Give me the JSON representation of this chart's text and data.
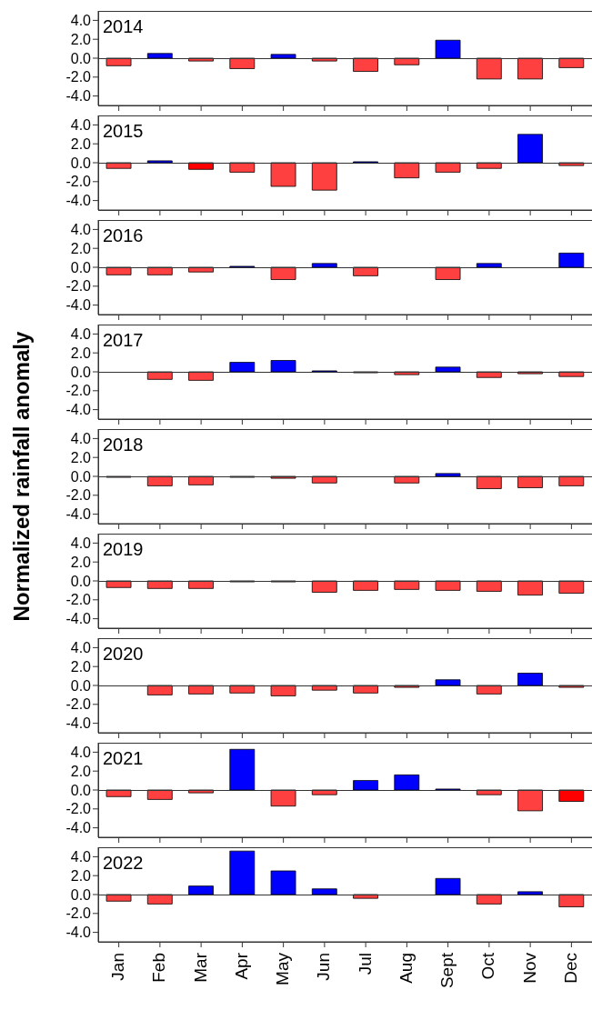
{
  "chart_data": [
    {
      "type": "bar",
      "title": "2014",
      "categories": [
        null,
        null,
        null,
        null,
        null,
        null,
        null,
        null,
        null,
        null,
        null,
        null
      ],
      "values": [
        -0.8,
        0.5,
        -0.3,
        -1.1,
        0.4,
        -0.3,
        -1.4,
        -0.7,
        1.9,
        -2.2,
        -2.2,
        -1.0
      ],
      "colors": [
        "#ff4040",
        "#0000ff",
        "#ff4040",
        "#ff4040",
        "#0000ff",
        "#ff4040",
        "#ff4040",
        "#ff4040",
        "#0000ff",
        "#ff4040",
        "#ff4040",
        "#ff4040"
      ],
      "ylim": [
        -5,
        5
      ],
      "yticks": [
        {
          "value": 4,
          "label": "4.0"
        },
        {
          "value": 2,
          "label": "2.0"
        },
        {
          "value": 0,
          "label": "0.0"
        },
        {
          "value": -2,
          "label": "-2.0"
        },
        {
          "value": -4,
          "label": "-4.0"
        }
      ],
      "tick_labels": "y"
    },
    {
      "type": "bar",
      "title": "2015",
      "categories": [
        null,
        null,
        null,
        null,
        null,
        null,
        null,
        null,
        null,
        null,
        null,
        null
      ],
      "values": [
        -0.6,
        0.2,
        -0.7,
        -1.0,
        -2.5,
        -2.9,
        0.1,
        -1.6,
        -1.0,
        -0.6,
        3.0,
        -0.3
      ],
      "colors": [
        "#ff4040",
        "#0000ff",
        "#ff0000",
        "#ff4040",
        "#ff4040",
        "#ff4040",
        "#0000ff",
        "#ff4040",
        "#ff4040",
        "#ff4040",
        "#0000ff",
        "#ff4040"
      ],
      "ylim": [
        -5,
        5
      ],
      "yticks": [
        {
          "value": 4,
          "label": "4.0"
        },
        {
          "value": 2,
          "label": "2.0"
        },
        {
          "value": 0,
          "label": "0.0"
        },
        {
          "value": -2,
          "label": "-2.0"
        },
        {
          "value": -4,
          "label": "-4.0"
        }
      ],
      "tick_labels": "y"
    },
    {
      "type": "bar",
      "title": "2016",
      "categories": [
        null,
        null,
        null,
        null,
        null,
        null,
        null,
        null,
        null,
        null,
        null,
        null
      ],
      "values": [
        -0.8,
        -0.8,
        -0.5,
        0.1,
        -1.3,
        0.4,
        -0.9,
        null,
        -1.3,
        0.4,
        null,
        1.5
      ],
      "colors": [
        "#ff4040",
        "#ff4040",
        "#ff4040",
        "#0000ff",
        "#ff4040",
        "#0000ff",
        "#ff4040",
        "#ff4040",
        "#ff4040",
        "#0000ff",
        "#0000ff",
        "#0000ff"
      ],
      "ylim": [
        -5,
        5
      ],
      "yticks": [
        {
          "value": 4,
          "label": "4.0"
        },
        {
          "value": 2,
          "label": "2.0"
        },
        {
          "value": 0,
          "label": "0.0"
        },
        {
          "value": -2,
          "label": "-2.0"
        },
        {
          "value": -4,
          "label": "-4.0"
        }
      ],
      "tick_labels": "y"
    },
    {
      "type": "bar",
      "title": "2017",
      "categories": [
        null,
        null,
        null,
        null,
        null,
        null,
        null,
        null,
        null,
        null,
        null,
        null
      ],
      "values": [
        null,
        -0.8,
        -0.9,
        1.0,
        1.2,
        0.1,
        -0.1,
        -0.3,
        0.5,
        -0.6,
        -0.2,
        -0.5
      ],
      "colors": [
        "#ff4040",
        "#ff4040",
        "#ff4040",
        "#0000ff",
        "#0000ff",
        "#0000ff",
        "#ff4040",
        "#ff4040",
        "#0000ff",
        "#ff4040",
        "#ff4040",
        "#ff4040"
      ],
      "ylim": [
        -5,
        5
      ],
      "yticks": [
        {
          "value": 4,
          "label": "4.0"
        },
        {
          "value": 2,
          "label": "2.0"
        },
        {
          "value": 0,
          "label": "0.0"
        },
        {
          "value": -2,
          "label": "-2.0"
        },
        {
          "value": -4,
          "label": "-4.0"
        }
      ],
      "tick_labels": "y"
    },
    {
      "type": "bar",
      "title": "2018",
      "ylabel": "Normalized rainfall anomaly",
      "categories": [
        null,
        null,
        null,
        null,
        null,
        null,
        null,
        null,
        null,
        null,
        null,
        null
      ],
      "values": [
        -0.1,
        -1.0,
        -0.9,
        -0.1,
        -0.2,
        -0.7,
        null,
        -0.7,
        0.3,
        -1.3,
        -1.2,
        -1.0
      ],
      "colors": [
        "#ff4040",
        "#ff4040",
        "#ff4040",
        "#ff4040",
        "#ff4040",
        "#ff4040",
        "#ff4040",
        "#ff4040",
        "#0000ff",
        "#ff4040",
        "#ff4040",
        "#ff4040"
      ],
      "ylim": [
        -5,
        5
      ],
      "yticks": [
        {
          "value": 4,
          "label": "4.0"
        },
        {
          "value": 2,
          "label": "2.0"
        },
        {
          "value": 0,
          "label": "0.0"
        },
        {
          "value": -2,
          "label": "-2.0"
        },
        {
          "value": -4,
          "label": "-4.0"
        }
      ],
      "tick_labels": "y"
    },
    {
      "type": "bar",
      "title": "2019",
      "categories": [
        null,
        null,
        null,
        null,
        null,
        null,
        null,
        null,
        null,
        null,
        null,
        null
      ],
      "values": [
        -0.7,
        -0.8,
        -0.8,
        -0.1,
        -0.1,
        -1.2,
        -1.0,
        -0.9,
        -1.0,
        -1.1,
        -1.5,
        -1.3
      ],
      "colors": [
        "#ff4040",
        "#ff4040",
        "#ff4040",
        "#ff4040",
        "#ff4040",
        "#ff4040",
        "#ff4040",
        "#ff4040",
        "#ff4040",
        "#ff4040",
        "#ff4040",
        "#ff4040"
      ],
      "ylim": [
        -5,
        5
      ],
      "yticks": [
        {
          "value": 4,
          "label": "4.0"
        },
        {
          "value": 2,
          "label": "2.0"
        },
        {
          "value": 0,
          "label": "0.0"
        },
        {
          "value": -2,
          "label": "-2.0"
        },
        {
          "value": -4,
          "label": "-4.0"
        }
      ],
      "tick_labels": "y"
    },
    {
      "type": "bar",
      "title": "2020",
      "categories": [
        null,
        null,
        null,
        null,
        null,
        null,
        null,
        null,
        null,
        null,
        null,
        null
      ],
      "values": [
        null,
        -1.0,
        -0.9,
        -0.8,
        -1.1,
        -0.5,
        -0.8,
        -0.2,
        0.6,
        -0.9,
        1.3,
        -0.2
      ],
      "colors": [
        "#ff4040",
        "#ff4040",
        "#ff4040",
        "#ff4040",
        "#ff4040",
        "#ff4040",
        "#ff4040",
        "#ff4040",
        "#0000ff",
        "#ff4040",
        "#0000ff",
        "#ff4040"
      ],
      "ylim": [
        -5,
        5
      ],
      "yticks": [
        {
          "value": 4,
          "label": "4.0"
        },
        {
          "value": 2,
          "label": "2.0"
        },
        {
          "value": 0,
          "label": "0.0"
        },
        {
          "value": -2,
          "label": "-2.0"
        },
        {
          "value": -4,
          "label": "-4.0"
        }
      ],
      "tick_labels": "y"
    },
    {
      "type": "bar",
      "title": "2021",
      "categories": [
        null,
        null,
        null,
        null,
        null,
        null,
        null,
        null,
        null,
        null,
        null,
        null
      ],
      "values": [
        -0.7,
        -1.0,
        -0.3,
        4.3,
        -1.7,
        -0.5,
        1.0,
        1.6,
        0.1,
        -0.5,
        -2.2,
        -1.2
      ],
      "colors": [
        "#ff4040",
        "#ff4040",
        "#ff4040",
        "#0000ff",
        "#ff4040",
        "#ff4040",
        "#0000ff",
        "#0000ff",
        "#0000ff",
        "#ff4040",
        "#ff4040",
        "#ff0000"
      ],
      "ylim": [
        -5,
        5
      ],
      "yticks": [
        {
          "value": 4,
          "label": "4.0"
        },
        {
          "value": 2,
          "label": "2.0"
        },
        {
          "value": 0,
          "label": "0.0"
        },
        {
          "value": -2,
          "label": "-2.0"
        },
        {
          "value": -4,
          "label": "-4.0"
        }
      ],
      "tick_labels": "y"
    },
    {
      "type": "bar",
      "title": "2022",
      "categories": [
        "Jan",
        "Feb",
        "Mar",
        "Apr",
        "May",
        "Jun",
        "Jul",
        "Aug",
        "Sept",
        "Oct",
        "Nov",
        "Dec"
      ],
      "values": [
        -0.7,
        -1.0,
        0.9,
        4.6,
        2.5,
        0.6,
        -0.4,
        null,
        1.7,
        -1.0,
        0.3,
        -1.3
      ],
      "colors": [
        "#ff4040",
        "#ff4040",
        "#0000ff",
        "#0000ff",
        "#0000ff",
        "#0000ff",
        "#ff4040",
        "#ff4040",
        "#0000ff",
        "#ff4040",
        "#0000ff",
        "#ff4040"
      ],
      "ylim": [
        -5,
        5
      ],
      "yticks": [
        {
          "value": 4,
          "label": "4.0"
        },
        {
          "value": 2,
          "label": "2.0"
        },
        {
          "value": 0,
          "label": "0.0"
        },
        {
          "value": -2,
          "label": "-2.0"
        },
        {
          "value": -4,
          "label": "-4.0"
        }
      ]
    }
  ]
}
